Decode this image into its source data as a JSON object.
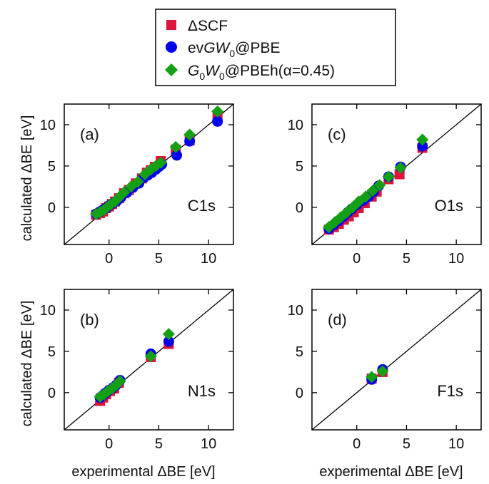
{
  "legend": {
    "items": [
      {
        "marker": "square",
        "color": "#dc143c",
        "label": "ΔSCF"
      },
      {
        "marker": "circle",
        "color": "#0000ee",
        "label_parts": [
          "ev",
          "GW",
          "0",
          "@PBE"
        ]
      },
      {
        "marker": "diamond",
        "color": "#14a014",
        "label_parts": [
          "G",
          "0",
          "W",
          "0",
          "@PBEh(α=0.45)"
        ]
      }
    ]
  },
  "axis_titles": {
    "x": "experimental ΔBE [eV]",
    "y": "calculated ΔBE [eV]"
  },
  "chart_data": [
    {
      "type": "scatter",
      "panel": "(a)",
      "core_level": "C1s",
      "xlim": [
        -4.5,
        12.5
      ],
      "ylim": [
        -4.5,
        12.5
      ],
      "xticks": [
        0,
        5,
        10
      ],
      "yticks": [
        0,
        5,
        10
      ],
      "diagonal": "y = x",
      "series": [
        {
          "name": "ΔSCF",
          "x": [
            -1.3,
            -0.9,
            -0.6,
            -0.3,
            0.0,
            0.3,
            0.6,
            1.0,
            1.5,
            2.0,
            2.7,
            3.3,
            3.8,
            4.2,
            4.6,
            5.2,
            6.7,
            8.1,
            10.9
          ],
          "y": [
            -0.9,
            -0.7,
            -0.5,
            -0.1,
            0.1,
            0.4,
            0.7,
            1.1,
            1.7,
            2.1,
            2.9,
            3.5,
            4.2,
            4.5,
            4.9,
            5.6,
            7.0,
            8.1,
            11.0
          ]
        },
        {
          "name": "evGW0@PBE",
          "x": [
            -1.3,
            -1.0,
            -0.6,
            -0.3,
            0.0,
            0.4,
            0.8,
            1.2,
            1.8,
            2.4,
            3.0,
            3.5,
            3.9,
            4.3,
            4.7,
            5.0,
            5.3,
            6.8,
            8.1,
            10.9
          ],
          "y": [
            -0.8,
            -0.6,
            -0.3,
            -0.1,
            0.2,
            0.5,
            0.8,
            1.2,
            1.8,
            2.4,
            2.9,
            3.6,
            3.9,
            4.2,
            4.6,
            4.9,
            5.2,
            6.3,
            8.0,
            10.4
          ]
        },
        {
          "name": "G0W0@PBEh(α=0.45)",
          "x": [
            -1.3,
            -0.9,
            -0.5,
            -0.2,
            0.2,
            0.6,
            1.0,
            1.5,
            2.2,
            2.9,
            3.6,
            4.2,
            4.7,
            5.2,
            6.7,
            8.1,
            10.9
          ],
          "y": [
            -0.8,
            -0.6,
            -0.3,
            0.0,
            0.4,
            0.7,
            1.2,
            1.8,
            2.5,
            3.1,
            4.0,
            4.6,
            5.0,
            5.4,
            7.3,
            8.8,
            11.6
          ]
        }
      ]
    },
    {
      "type": "scatter",
      "panel": "(c)",
      "core_level": "O1s",
      "xlim": [
        -4.5,
        12.5
      ],
      "ylim": [
        -4.5,
        12.5
      ],
      "xticks": [
        0,
        5,
        10
      ],
      "yticks": [
        0,
        5,
        10
      ],
      "diagonal": "y = x",
      "series": [
        {
          "name": "ΔSCF",
          "x": [
            -2.8,
            -2.3,
            -1.8,
            -1.3,
            -0.8,
            -0.3,
            0.2,
            0.8,
            1.5,
            2.0,
            3.2,
            4.3,
            6.6
          ],
          "y": [
            -2.7,
            -2.4,
            -2.0,
            -1.5,
            -1.1,
            -0.6,
            -0.1,
            0.5,
            1.3,
            1.9,
            3.4,
            4.0,
            7.2
          ]
        },
        {
          "name": "evGW0@PBE",
          "x": [
            -2.8,
            -2.3,
            -1.8,
            -1.3,
            -0.9,
            -0.5,
            0.0,
            0.6,
            1.2,
            1.7,
            2.2,
            3.2,
            4.4,
            6.6
          ],
          "y": [
            -2.6,
            -2.1,
            -1.6,
            -1.1,
            -0.6,
            -0.2,
            0.3,
            0.8,
            1.3,
            1.9,
            2.6,
            3.7,
            4.9,
            7.4
          ]
        },
        {
          "name": "G0W0@PBEh(α=0.45)",
          "x": [
            -2.8,
            -2.2,
            -1.6,
            -1.0,
            -0.4,
            0.2,
            0.9,
            1.6,
            2.3,
            3.2,
            4.4,
            6.6
          ],
          "y": [
            -2.4,
            -1.8,
            -1.2,
            -0.6,
            0.0,
            0.7,
            1.3,
            2.0,
            2.7,
            3.7,
            4.8,
            8.2
          ]
        }
      ]
    },
    {
      "type": "scatter",
      "panel": "(b)",
      "core_level": "N1s",
      "xlim": [
        -4.5,
        12.5
      ],
      "ylim": [
        -4.5,
        12.5
      ],
      "xticks": [
        0,
        5,
        10
      ],
      "yticks": [
        0,
        5,
        10
      ],
      "diagonal": "y = x",
      "series": [
        {
          "name": "ΔSCF",
          "x": [
            -0.9,
            -0.6,
            -0.3,
            0.1,
            0.5,
            1.0,
            4.2,
            6.0
          ],
          "y": [
            -1.0,
            -0.6,
            -0.2,
            0.2,
            0.5,
            1.2,
            4.3,
            5.9
          ]
        },
        {
          "name": "evGW0@PBE",
          "x": [
            -0.9,
            -0.6,
            -0.3,
            0.0,
            0.4,
            0.7,
            1.1,
            4.2,
            6.0
          ],
          "y": [
            -0.6,
            -0.3,
            0.0,
            0.3,
            0.6,
            0.9,
            1.5,
            4.7,
            6.2
          ]
        },
        {
          "name": "G0W0@PBEh(α=0.45)",
          "x": [
            -0.9,
            -0.5,
            -0.1,
            0.3,
            0.7,
            1.1,
            4.2,
            6.0
          ],
          "y": [
            -0.5,
            -0.2,
            0.2,
            0.5,
            0.9,
            1.4,
            4.4,
            7.1
          ]
        }
      ]
    },
    {
      "type": "scatter",
      "panel": "(d)",
      "core_level": "F1s",
      "xlim": [
        -4.5,
        12.5
      ],
      "ylim": [
        -4.5,
        12.5
      ],
      "xticks": [
        0,
        5,
        10
      ],
      "yticks": [
        0,
        5,
        10
      ],
      "diagonal": "y = x",
      "series": [
        {
          "name": "ΔSCF",
          "x": [
            1.5,
            2.6
          ],
          "y": [
            1.7,
            2.5
          ]
        },
        {
          "name": "evGW0@PBE",
          "x": [
            1.5,
            2.6
          ],
          "y": [
            1.6,
            2.8
          ]
        },
        {
          "name": "G0W0@PBEh(α=0.45)",
          "x": [
            1.5,
            2.6
          ],
          "y": [
            1.9,
            2.6
          ]
        }
      ]
    }
  ]
}
